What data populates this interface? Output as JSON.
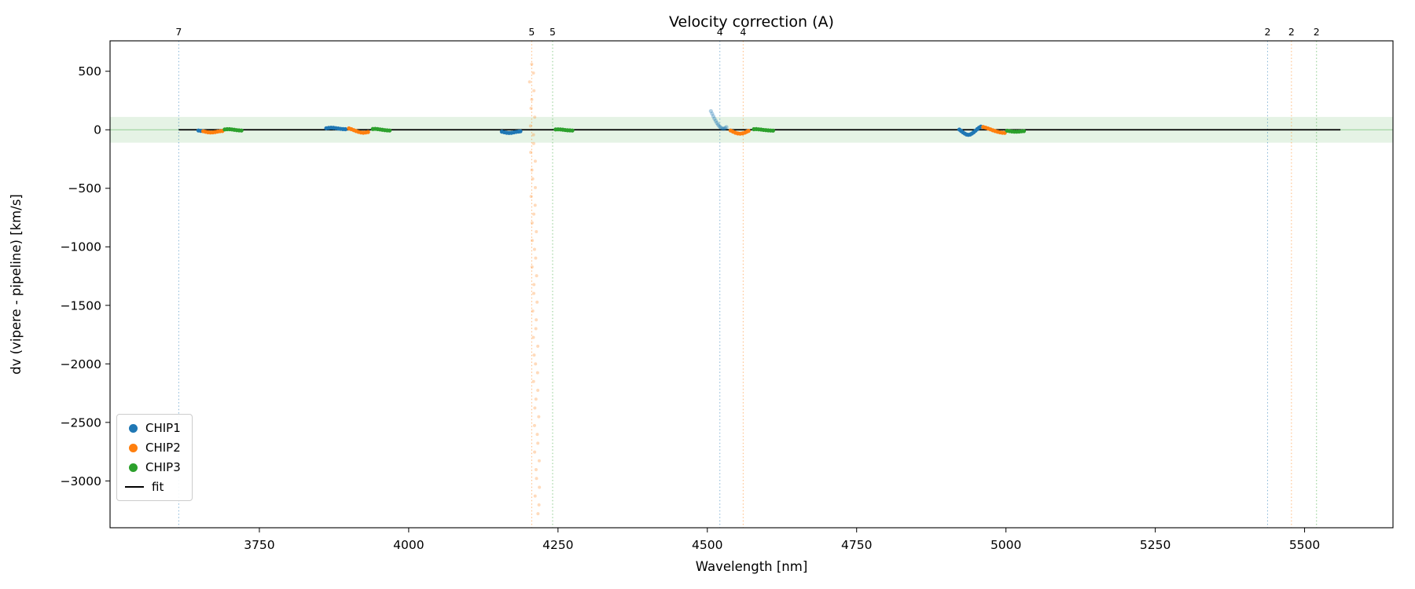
{
  "figure": {
    "background": "#ffffff"
  },
  "chart_data": {
    "type": "scatter",
    "title": "Velocity correction (A)",
    "xlabel": "Wavelength [nm]",
    "ylabel": "dv (vipere - pipeline) [km/s]",
    "xlim": [
      3500,
      5648
    ],
    "ylim": [
      -3400,
      760
    ],
    "xticks": [
      3750,
      4000,
      4250,
      4500,
      4750,
      5000,
      5250,
      5500
    ],
    "yticks": [
      500,
      0,
      -500,
      -1000,
      -1500,
      -2000,
      -2500,
      -3000
    ],
    "grid": false,
    "legend_position": "lower-left",
    "colors": {
      "chip1": "#1f77b4",
      "chip2": "#ff7f0e",
      "chip3": "#2ca02c",
      "fit": "#000000",
      "band": "#2ca02c"
    },
    "zero_band": {
      "center": 0,
      "halfwidth": 110,
      "color": "#2ca02c",
      "fill_opacity": 0.12,
      "line_opacity": 0.45
    },
    "fit_line": {
      "x_start": 3615,
      "x_end": 5560,
      "y": 0,
      "color": "#000000"
    },
    "vlines": [
      {
        "x": 3615,
        "count": "7",
        "color": "#1f77b4"
      },
      {
        "x": 4206,
        "count": "5",
        "color": "#ff7f0e"
      },
      {
        "x": 4241,
        "count": "5",
        "color": "#2ca02c"
      },
      {
        "x": 4521,
        "count": "4",
        "color": "#1f77b4"
      },
      {
        "x": 4560,
        "count": "4",
        "color": "#ff7f0e"
      },
      {
        "x": 5438,
        "count": "2",
        "color": "#1f77b4"
      },
      {
        "x": 5478,
        "count": "2",
        "color": "#ff7f0e"
      },
      {
        "x": 5520,
        "count": "2",
        "color": "#2ca02c"
      }
    ],
    "outlier_trail": {
      "color": "#ff7f0e",
      "opacity": 0.28,
      "radius": 2,
      "x_top": 4206,
      "x_bottom": 4216,
      "y_top": 560,
      "y_bottom": -3280,
      "count": 52,
      "jitter": 4
    },
    "legend": {
      "entries": [
        {
          "label": "CHIP1",
          "color": "#1f77b4",
          "marker": "dot"
        },
        {
          "label": "CHIP2",
          "color": "#ff7f0e",
          "marker": "dot"
        },
        {
          "label": "CHIP3",
          "color": "#2ca02c",
          "marker": "dot"
        },
        {
          "label": "fit",
          "color": "#000000",
          "marker": "line"
        }
      ]
    },
    "series": [
      {
        "name": "CHIP1",
        "color": "#1f77b4",
        "clusters": [
          {
            "alpha": 1,
            "points": [
              [
                3648,
                -6
              ],
              [
                3652,
                -9
              ],
              [
                3656,
                -10
              ]
            ]
          },
          {
            "alpha": 1,
            "points": [
              [
                3862,
                13
              ],
              [
                3866,
                16
              ],
              [
                3870,
                18
              ],
              [
                3874,
                17
              ],
              [
                3878,
                14
              ],
              [
                3882,
                11
              ],
              [
                3886,
                8
              ],
              [
                3890,
                6
              ],
              [
                3894,
                5
              ]
            ]
          },
          {
            "alpha": 1,
            "points": [
              [
                4156,
                -16
              ],
              [
                4160,
                -21
              ],
              [
                4164,
                -25
              ],
              [
                4168,
                -27
              ],
              [
                4172,
                -26
              ],
              [
                4176,
                -22
              ],
              [
                4180,
                -18
              ],
              [
                4184,
                -15
              ],
              [
                4187,
                -13
              ]
            ]
          },
          {
            "alpha": 0.35,
            "points": [
              [
                4506,
                160
              ],
              [
                4508,
                138
              ],
              [
                4510,
                116
              ],
              [
                4512,
                95
              ],
              [
                4514,
                76
              ],
              [
                4516,
                59
              ],
              [
                4518,
                44
              ],
              [
                4520,
                31
              ],
              [
                4522,
                21
              ],
              [
                4524,
                13
              ],
              [
                4526,
                9
              ],
              [
                4528,
                10
              ],
              [
                4530,
                15
              ],
              [
                4532,
                23
              ]
            ]
          },
          {
            "alpha": 1,
            "points": [
              [
                4922,
                2
              ],
              [
                4925,
                -10
              ],
              [
                4928,
                -22
              ],
              [
                4931,
                -32
              ],
              [
                4934,
                -40
              ],
              [
                4937,
                -43
              ],
              [
                4940,
                -40
              ],
              [
                4943,
                -32
              ],
              [
                4946,
                -21
              ],
              [
                4949,
                -8
              ],
              [
                4952,
                6
              ],
              [
                4955,
                18
              ],
              [
                4958,
                27
              ]
            ]
          }
        ]
      },
      {
        "name": "CHIP2",
        "color": "#ff7f0e",
        "clusters": [
          {
            "alpha": 1,
            "points": [
              [
                3656,
                -12
              ],
              [
                3660,
                -17
              ],
              [
                3664,
                -21
              ],
              [
                3668,
                -23
              ],
              [
                3672,
                -22
              ],
              [
                3676,
                -19
              ],
              [
                3680,
                -15
              ],
              [
                3684,
                -12
              ],
              [
                3688,
                -10
              ]
            ]
          },
          {
            "alpha": 1,
            "points": [
              [
                3900,
                12
              ],
              [
                3904,
                5
              ],
              [
                3908,
                -3
              ],
              [
                3912,
                -11
              ],
              [
                3916,
                -18
              ],
              [
                3920,
                -23
              ],
              [
                3924,
                -25
              ],
              [
                3928,
                -23
              ],
              [
                3932,
                -19
              ]
            ]
          },
          {
            "alpha": 1,
            "points": [
              [
                4539,
                -6
              ],
              [
                4543,
                -16
              ],
              [
                4547,
                -25
              ],
              [
                4551,
                -31
              ],
              [
                4555,
                -33
              ],
              [
                4559,
                -30
              ],
              [
                4563,
                -24
              ],
              [
                4566,
                -16
              ],
              [
                4569,
                -9
              ]
            ]
          },
          {
            "alpha": 1,
            "points": [
              [
                4962,
                24
              ],
              [
                4966,
                18
              ],
              [
                4970,
                11
              ],
              [
                4974,
                4
              ],
              [
                4978,
                -4
              ],
              [
                4982,
                -11
              ],
              [
                4986,
                -17
              ],
              [
                4990,
                -22
              ],
              [
                4994,
                -25
              ],
              [
                4998,
                -26
              ]
            ]
          }
        ]
      },
      {
        "name": "CHIP3",
        "color": "#2ca02c",
        "clusters": [
          {
            "alpha": 1,
            "points": [
              [
                3692,
                3
              ],
              [
                3696,
                5
              ],
              [
                3700,
                5
              ],
              [
                3704,
                3
              ],
              [
                3708,
                0
              ],
              [
                3712,
                -3
              ],
              [
                3716,
                -5
              ],
              [
                3720,
                -6
              ]
            ]
          },
          {
            "alpha": 1,
            "points": [
              [
                3940,
                7
              ],
              [
                3944,
                8
              ],
              [
                3948,
                6
              ],
              [
                3952,
                3
              ],
              [
                3956,
                0
              ],
              [
                3960,
                -3
              ],
              [
                3964,
                -5
              ],
              [
                3968,
                -6
              ]
            ]
          },
          {
            "alpha": 1,
            "points": [
              [
                4246,
                3
              ],
              [
                4250,
                4
              ],
              [
                4254,
                3
              ],
              [
                4258,
                1
              ],
              [
                4262,
                -2
              ],
              [
                4266,
                -4
              ],
              [
                4270,
                -5
              ],
              [
                4274,
                -6
              ]
            ]
          },
          {
            "alpha": 1,
            "points": [
              [
                4578,
                5
              ],
              [
                4582,
                6
              ],
              [
                4586,
                4
              ],
              [
                4590,
                2
              ],
              [
                4594,
                -1
              ],
              [
                4598,
                -3
              ],
              [
                4602,
                -5
              ],
              [
                4606,
                -6
              ],
              [
                4610,
                -7
              ]
            ]
          },
          {
            "alpha": 1,
            "points": [
              [
                5002,
                -8
              ],
              [
                5006,
                -11
              ],
              [
                5010,
                -14
              ],
              [
                5014,
                -16
              ],
              [
                5018,
                -16
              ],
              [
                5022,
                -15
              ],
              [
                5026,
                -13
              ],
              [
                5030,
                -11
              ]
            ]
          }
        ]
      }
    ]
  }
}
